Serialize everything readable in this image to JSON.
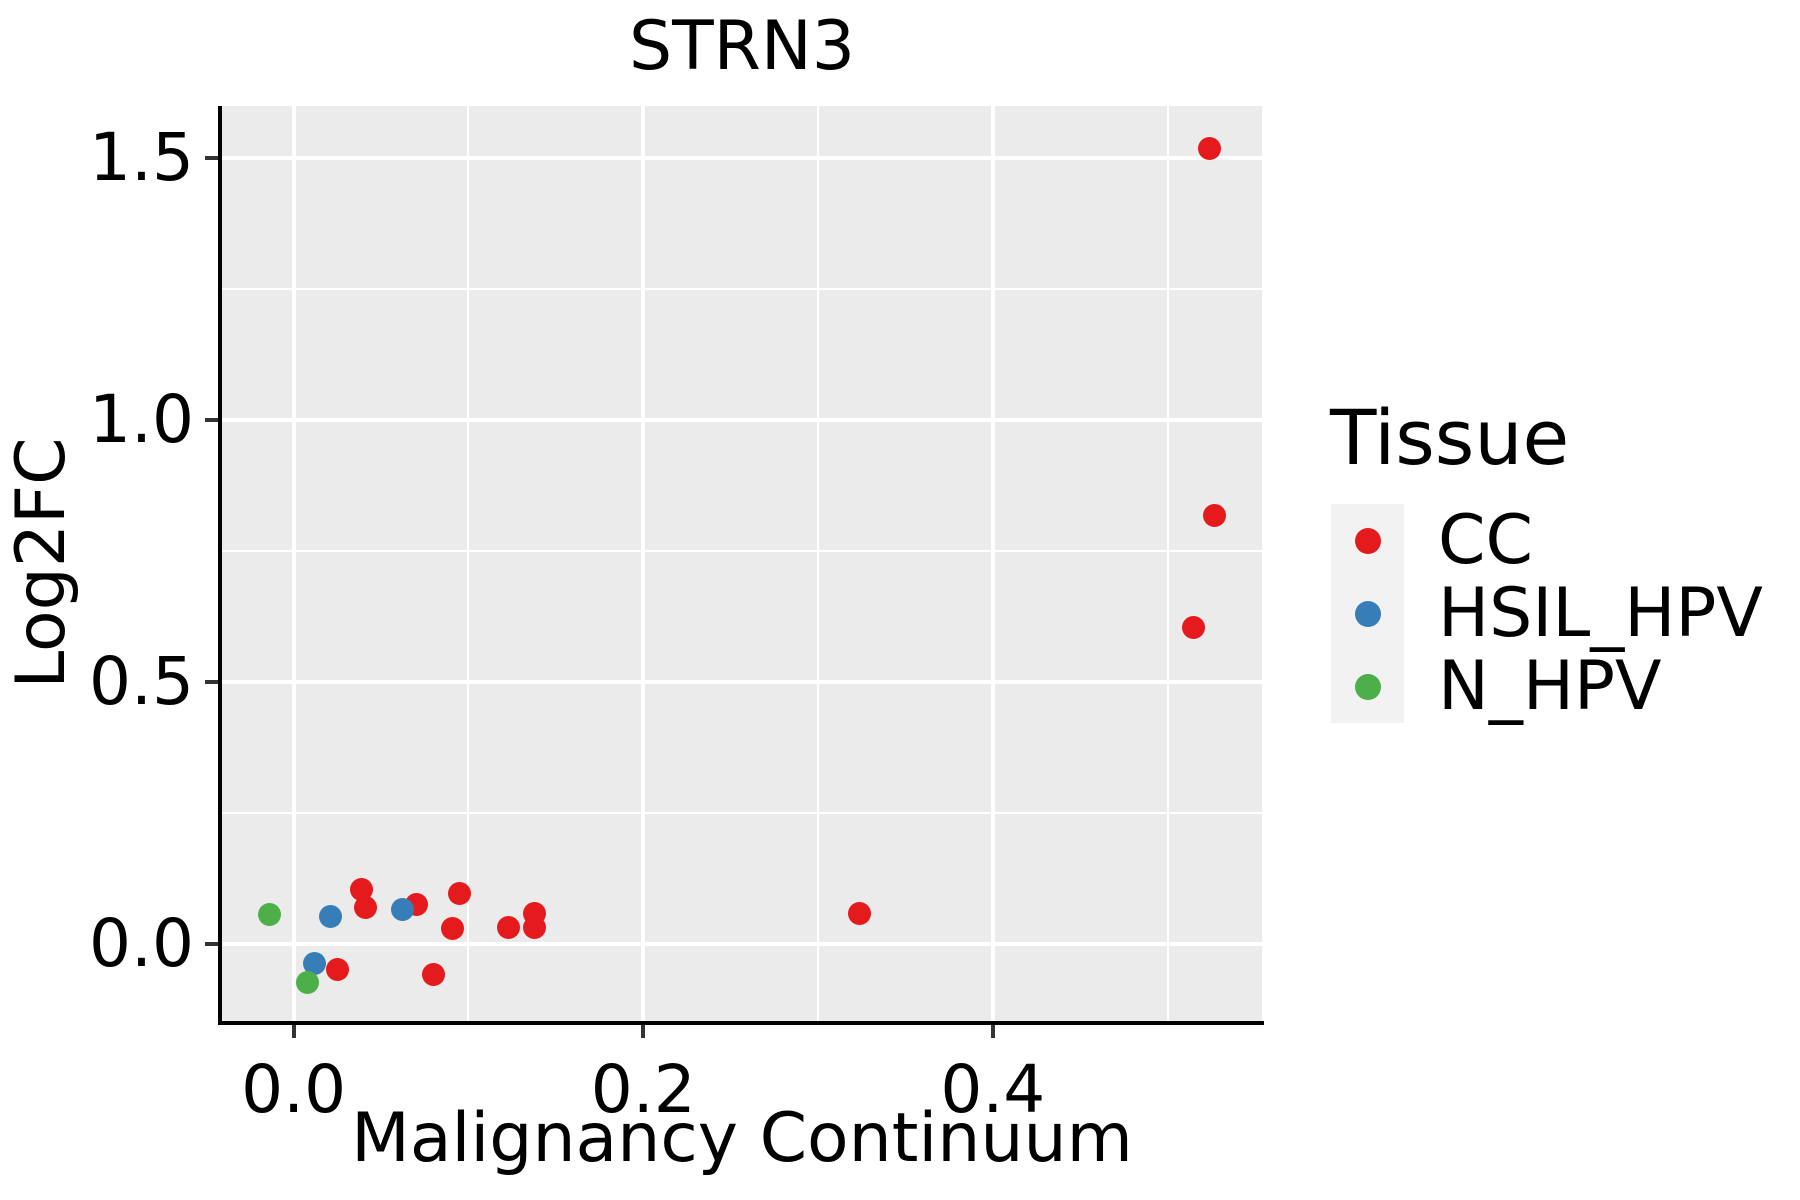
{
  "title": "STRN3",
  "colors": {
    "panel_bg": "#EBEBEB",
    "grid": "#FFFFFF",
    "axis_line": "#000000",
    "tick_mark": "#333333",
    "text": "#000000",
    "legend_key_bg": "#F2F2F2",
    "cc_red": "#E41A1C",
    "hsil_blue": "#377EB8",
    "nhpv_green": "#4DAF4A"
  },
  "legend": {
    "title": "Tissue",
    "position": "right",
    "entries": [
      {
        "label": "CC",
        "color": "#E41A1C"
      },
      {
        "label": "HSIL_HPV",
        "color": "#377EB8"
      },
      {
        "label": "N_HPV",
        "color": "#4DAF4A"
      }
    ]
  },
  "chart_data": {
    "type": "scatter",
    "title": "STRN3",
    "xlabel": "Malignancy Continuum",
    "ylabel": "Log2FC",
    "grid": true,
    "legend_position": "right",
    "x_range": [
      -0.041,
      0.554
    ],
    "y_range": [
      -0.147,
      1.599
    ],
    "x_major_ticks": [
      0.0,
      0.2,
      0.4
    ],
    "x_tick_labels": [
      "0.0",
      "0.2",
      "0.4"
    ],
    "x_minor_ticks": [
      0.1,
      0.3,
      0.5
    ],
    "y_major_ticks": [
      0.0,
      0.5,
      1.0,
      1.5
    ],
    "y_tick_labels": [
      "0.0",
      "0.5",
      "1.0",
      "1.5"
    ],
    "y_minor_ticks": [
      0.25,
      0.75,
      1.25
    ],
    "series": [
      {
        "name": "CC",
        "color": "#E41A1C",
        "points": [
          [
            0.039,
            0.103
          ],
          [
            0.041,
            0.069
          ],
          [
            0.07,
            0.076
          ],
          [
            0.095,
            0.097
          ],
          [
            0.091,
            0.029
          ],
          [
            0.123,
            0.032
          ],
          [
            0.138,
            0.059
          ],
          [
            0.138,
            0.031
          ],
          [
            0.025,
            -0.048
          ],
          [
            0.08,
            -0.059
          ],
          [
            0.324,
            0.059
          ],
          [
            0.524,
            1.517
          ],
          [
            0.527,
            0.817
          ],
          [
            0.515,
            0.603
          ]
        ]
      },
      {
        "name": "HSIL_HPV",
        "color": "#377EB8",
        "points": [
          [
            0.021,
            0.053
          ],
          [
            0.062,
            0.065
          ],
          [
            0.012,
            -0.038
          ]
        ]
      },
      {
        "name": "N_HPV",
        "color": "#4DAF4A",
        "points": [
          [
            -0.014,
            0.057
          ],
          [
            0.008,
            -0.073
          ]
        ]
      }
    ]
  }
}
